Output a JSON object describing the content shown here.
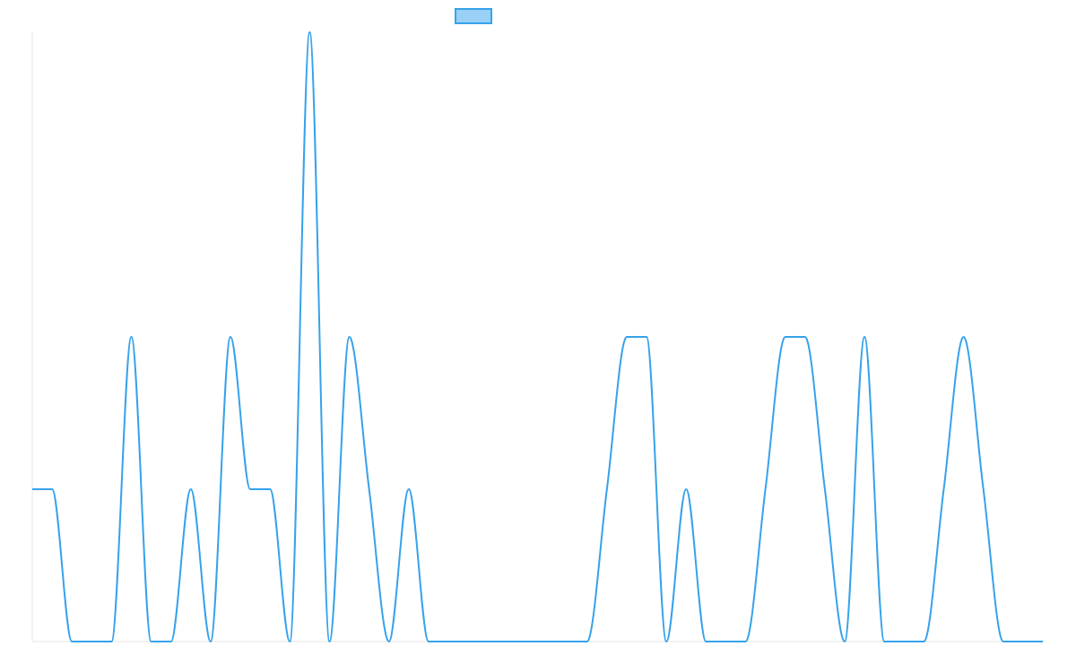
{
  "chart_data": {
    "type": "line",
    "categories": [
      null,
      null,
      null,
      null,
      null,
      null,
      null,
      null,
      null,
      null,
      null,
      null,
      null,
      null,
      null,
      null,
      null,
      null,
      null,
      null,
      null,
      null,
      null,
      null,
      null,
      null,
      null,
      null,
      null,
      null,
      null,
      null,
      null,
      null,
      null,
      null,
      null,
      null,
      null,
      null,
      null,
      null,
      null,
      null,
      null,
      null,
      null,
      null,
      null,
      null,
      null,
      null
    ],
    "series": [
      {
        "color": "#36a2eb",
        "values": [
          1,
          1,
          0,
          0,
          0,
          2,
          0,
          0,
          1,
          0,
          2,
          1,
          1,
          0,
          4,
          0,
          2,
          1,
          0,
          1,
          0,
          0,
          0,
          0,
          0,
          0,
          0,
          0,
          0,
          1,
          2,
          2,
          0,
          1,
          0,
          0,
          0,
          1,
          2,
          2,
          1,
          0,
          2,
          0,
          0,
          0,
          1,
          2,
          1,
          0,
          0,
          0
        ]
      }
    ],
    "ylim": [
      0,
      4
    ]
  }
}
